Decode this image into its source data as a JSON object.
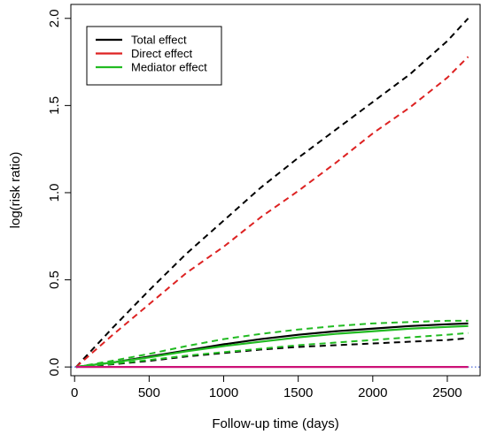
{
  "chart_data": {
    "type": "line",
    "xlabel": "Follow-up time (days)",
    "ylabel": "log(risk ratio)",
    "xlim": [
      -25,
      2720
    ],
    "ylim": [
      -0.05,
      2.08
    ],
    "x_ticks": [
      {
        "value": 0,
        "label": "0"
      },
      {
        "value": 500,
        "label": "500"
      },
      {
        "value": 1000,
        "label": "1000"
      },
      {
        "value": 1500,
        "label": "1500"
      },
      {
        "value": 2000,
        "label": "2000"
      },
      {
        "value": 2500,
        "label": "2500"
      }
    ],
    "y_ticks": [
      {
        "value": 0,
        "label": "0.0"
      },
      {
        "value": 0.5,
        "label": "0.5"
      },
      {
        "value": 1.0,
        "label": "1.0"
      },
      {
        "value": 1.5,
        "label": "1.5"
      },
      {
        "value": 2.0,
        "label": "2.0"
      }
    ],
    "grid": false,
    "legend_position": "top-left",
    "legend": [
      {
        "label": "Total effect",
        "color": "#000000"
      },
      {
        "label": "Direct effect",
        "color": "#dd2222"
      },
      {
        "label": "Mediator effect",
        "color": "#22bb22"
      }
    ],
    "series": [
      {
        "name": "Total effect upper bound",
        "color": "#000000",
        "style": "dashed",
        "x": [
          10,
          250,
          500,
          750,
          1000,
          1250,
          1500,
          1750,
          2000,
          2250,
          2500,
          2640
        ],
        "y": [
          0.0,
          0.22,
          0.44,
          0.65,
          0.84,
          1.03,
          1.2,
          1.36,
          1.52,
          1.68,
          1.87,
          2.0
        ]
      },
      {
        "name": "Direct effect upper bound",
        "color": "#dd2222",
        "style": "dashed",
        "x": [
          10,
          250,
          500,
          750,
          1000,
          1250,
          1500,
          1750,
          2000,
          2250,
          2500,
          2640
        ],
        "y": [
          0.0,
          0.18,
          0.36,
          0.54,
          0.69,
          0.86,
          1.01,
          1.17,
          1.34,
          1.49,
          1.66,
          1.78
        ]
      },
      {
        "name": "Total effect",
        "color": "#000000",
        "style": "solid",
        "x": [
          10,
          250,
          500,
          750,
          1000,
          1250,
          1500,
          1750,
          2000,
          2250,
          2500,
          2640
        ],
        "y": [
          0.0,
          0.025,
          0.06,
          0.095,
          0.13,
          0.16,
          0.185,
          0.205,
          0.22,
          0.235,
          0.245,
          0.25
        ]
      },
      {
        "name": "Total effect lower bound",
        "color": "#000000",
        "style": "dashed",
        "x": [
          10,
          250,
          500,
          750,
          1000,
          1250,
          1500,
          1750,
          2000,
          2250,
          2500,
          2640
        ],
        "y": [
          0.0,
          0.015,
          0.035,
          0.06,
          0.08,
          0.1,
          0.115,
          0.125,
          0.135,
          0.145,
          0.155,
          0.165
        ]
      },
      {
        "name": "Mediator effect upper bound",
        "color": "#22bb22",
        "style": "dashed",
        "x": [
          10,
          250,
          500,
          750,
          1000,
          1250,
          1500,
          1750,
          2000,
          2250,
          2500,
          2640
        ],
        "y": [
          0.0,
          0.035,
          0.075,
          0.12,
          0.16,
          0.19,
          0.215,
          0.235,
          0.25,
          0.258,
          0.265,
          0.265
        ]
      },
      {
        "name": "Mediator effect",
        "color": "#22bb22",
        "style": "solid",
        "x": [
          10,
          250,
          500,
          750,
          1000,
          1250,
          1500,
          1750,
          2000,
          2250,
          2500,
          2640
        ],
        "y": [
          0.0,
          0.025,
          0.055,
          0.09,
          0.12,
          0.145,
          0.17,
          0.19,
          0.205,
          0.22,
          0.23,
          0.235
        ]
      },
      {
        "name": "Mediator effect lower bound",
        "color": "#22bb22",
        "style": "dashed",
        "x": [
          10,
          250,
          500,
          750,
          1000,
          1250,
          1500,
          1750,
          2000,
          2250,
          2500,
          2640
        ],
        "y": [
          0.0,
          0.018,
          0.04,
          0.065,
          0.085,
          0.105,
          0.125,
          0.14,
          0.155,
          0.17,
          0.185,
          0.195
        ]
      },
      {
        "name": "Null effect",
        "color": "#cc1177",
        "style": "solid",
        "x": [
          10,
          2640
        ],
        "y": [
          0.0,
          0.0
        ]
      }
    ],
    "reference_lines": [
      {
        "axis": "y",
        "value": 0,
        "color": "#2244cc",
        "style": "dotted"
      }
    ]
  }
}
